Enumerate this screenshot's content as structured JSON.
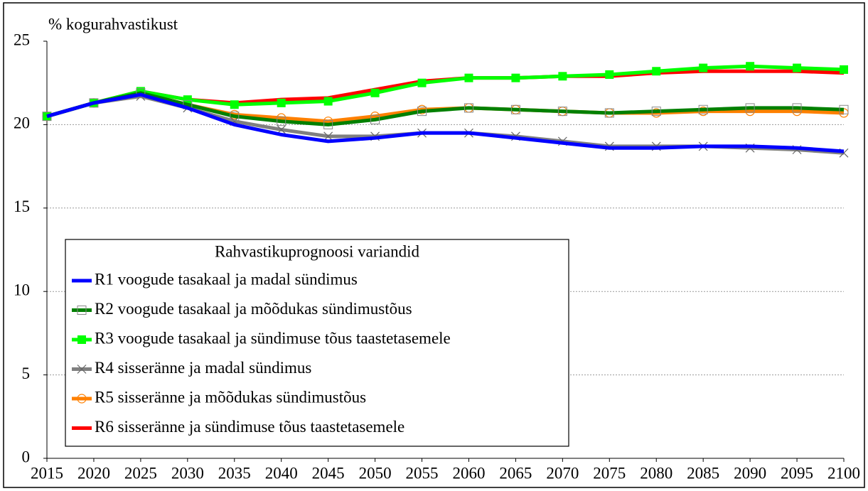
{
  "chart_data": {
    "type": "line",
    "y_label": "% kogurahvastikust",
    "legend_title": "Rahvastikuprognoosi variandid",
    "categories": [
      "2015",
      "2020",
      "2025",
      "2030",
      "2035",
      "2040",
      "2045",
      "2050",
      "2055",
      "2060",
      "2065",
      "2070",
      "2075",
      "2080",
      "2085",
      "2090",
      "2095",
      "2100"
    ],
    "ylim": [
      0,
      25
    ],
    "yticks": [
      0,
      5,
      10,
      15,
      20,
      25
    ],
    "grid": true,
    "series": [
      {
        "name": "R1 voogude tasakaal ja madal sündimus",
        "color": "#0000ff",
        "marker": "none",
        "values": [
          20.5,
          21.3,
          21.8,
          21.0,
          20.0,
          19.4,
          19.0,
          19.2,
          19.5,
          19.5,
          19.2,
          18.9,
          18.6,
          18.6,
          18.7,
          18.7,
          18.6,
          18.4
        ]
      },
      {
        "name": "R2 voogude tasakaal ja mõõdukas sündimustõus",
        "color": "#008000",
        "marker": "hollow-square",
        "values": [
          20.5,
          21.3,
          21.9,
          21.2,
          20.5,
          20.2,
          20.0,
          20.3,
          20.8,
          21.0,
          20.9,
          20.8,
          20.7,
          20.8,
          20.9,
          21.0,
          21.0,
          20.9
        ]
      },
      {
        "name": "R3 voogude tasakaal ja sündimuse tõus taastetasemele",
        "color": "#00ff00",
        "marker": "square",
        "values": [
          20.5,
          21.3,
          22.0,
          21.5,
          21.2,
          21.3,
          21.4,
          21.9,
          22.5,
          22.8,
          22.8,
          22.9,
          23.0,
          23.2,
          23.4,
          23.5,
          23.4,
          23.3
        ]
      },
      {
        "name": "R4 sisseränne ja madal sündimus",
        "color": "#808080",
        "marker": "x",
        "values": [
          20.5,
          21.3,
          21.7,
          21.0,
          20.2,
          19.7,
          19.3,
          19.3,
          19.5,
          19.5,
          19.3,
          19.0,
          18.7,
          18.7,
          18.7,
          18.6,
          18.5,
          18.3
        ]
      },
      {
        "name": "R5 sisseränne ja mõõdukas sündimustõus",
        "color": "#ff8000",
        "marker": "circle",
        "values": [
          20.5,
          21.3,
          21.9,
          21.2,
          20.6,
          20.4,
          20.2,
          20.5,
          20.9,
          21.0,
          20.9,
          20.8,
          20.7,
          20.7,
          20.8,
          20.8,
          20.8,
          20.7
        ]
      },
      {
        "name": "R6 sisseränne ja sündimuse tõus taastetasemele",
        "color": "#ff0000",
        "marker": "none",
        "values": [
          20.5,
          21.3,
          22.0,
          21.5,
          21.3,
          21.5,
          21.6,
          22.1,
          22.6,
          22.8,
          22.8,
          22.9,
          22.9,
          23.1,
          23.2,
          23.2,
          23.2,
          23.1
        ]
      }
    ]
  }
}
